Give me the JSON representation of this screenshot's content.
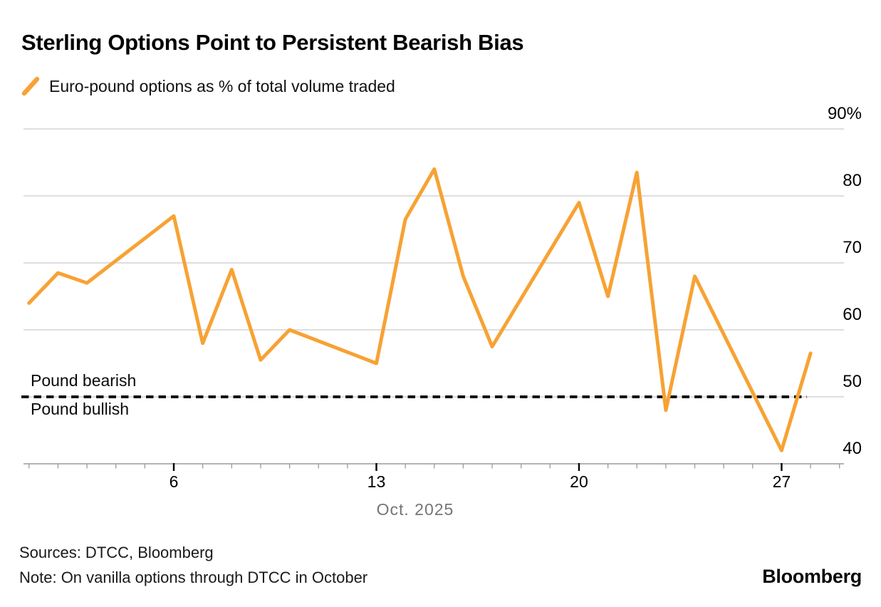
{
  "header": {
    "title": "Sterling Options Point to Persistent Bearish Bias",
    "legend_label": "Euro-pound options as % of total volume traded"
  },
  "footer": {
    "sources": "Sources: DTCC, Bloomberg",
    "note": "Note: On vanilla options through DTCC in October",
    "brand": "Bloomberg"
  },
  "chart_data": {
    "type": "line",
    "title": "Sterling Options Point to Persistent Bearish Bias",
    "series_name": "Euro-pound options as % of total volume traded",
    "x_unit": "day of October 2025",
    "x": [
      1,
      2,
      3,
      6,
      7,
      8,
      9,
      10,
      13,
      14,
      15,
      16,
      17,
      20,
      21,
      22,
      23,
      24,
      27,
      28
    ],
    "values": [
      64,
      68.5,
      67,
      77,
      58,
      69,
      55.5,
      60,
      55,
      76.5,
      84,
      68,
      57.5,
      79,
      65,
      83.5,
      48,
      68,
      42,
      56.5
    ],
    "ylim": [
      40,
      90
    ],
    "yticks": [
      {
        "value": 90,
        "label": "90%"
      },
      {
        "value": 80,
        "label": "80"
      },
      {
        "value": 70,
        "label": "70"
      },
      {
        "value": 60,
        "label": "60"
      },
      {
        "value": 50,
        "label": "50"
      },
      {
        "value": 40,
        "label": "40"
      }
    ],
    "xticks": [
      {
        "value": 6,
        "label": "6"
      },
      {
        "value": 13,
        "label": "13"
      },
      {
        "value": 20,
        "label": "20"
      },
      {
        "value": 27,
        "label": "27"
      }
    ],
    "minor_tick_days": [
      1,
      2,
      3,
      4,
      5,
      6,
      7,
      8,
      9,
      10,
      11,
      12,
      13,
      14,
      15,
      16,
      17,
      18,
      19,
      20,
      21,
      22,
      23,
      24,
      25,
      26,
      27,
      28,
      29
    ],
    "xlabel": "Oct. 2025",
    "grid": "horizontal",
    "legend_position": "top-left",
    "threshold": {
      "value": 50,
      "style": "dashed",
      "label_above": "Pound bearish",
      "label_below": "Pound bullish"
    },
    "colors": {
      "line": "#F7A234",
      "grid": "#CBCBCB",
      "axis": "#9B9B9B",
      "tick_major": "#000000",
      "threshold": "#141414",
      "month_label": "#757575"
    }
  }
}
